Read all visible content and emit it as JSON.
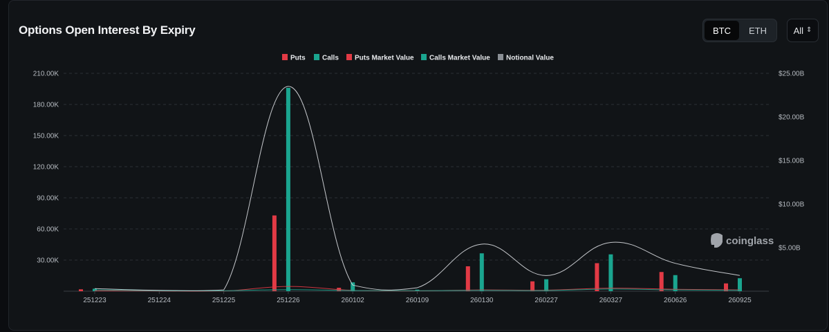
{
  "header": {
    "title": "Options Open Interest By Expiry",
    "coin_options": [
      "BTC",
      "ETH"
    ],
    "selected_coin": "BTC",
    "range_select": "All"
  },
  "watermark": "coinglass",
  "colors": {
    "puts": "#e23a45",
    "calls": "#1aa58f",
    "puts_market_value": "#e23a45",
    "calls_market_value": "#1aa58f",
    "notional_value": "#d9dce0",
    "grid": "#2c3136",
    "background": "#111417"
  },
  "chart_data": {
    "type": "bar",
    "title": "",
    "legend": [
      "Puts",
      "Calls",
      "Puts Market Value",
      "Calls Market Value",
      "Notional Value"
    ],
    "legend_position": "top-center",
    "grid": true,
    "categories": [
      "251223",
      "251224",
      "251225",
      "251226",
      "260102",
      "260109",
      "260130",
      "260227",
      "260327",
      "260626",
      "260925"
    ],
    "y_left": {
      "ticks": [
        "30.00K",
        "60.00K",
        "90.00K",
        "120.00K",
        "150.00K",
        "180.00K",
        "210.00K"
      ],
      "ylim": [
        0,
        210000
      ]
    },
    "y_right": {
      "ticks": [
        "$5.00B",
        "$10.00B",
        "$15.00B",
        "$20.00B",
        "$25.00B"
      ],
      "ylim": [
        0,
        25000000000
      ]
    },
    "series": [
      {
        "name": "Puts",
        "type": "bar",
        "axis": "left",
        "values": [
          1800,
          0,
          0,
          73000,
          3300,
          300,
          24000,
          9500,
          27000,
          18500,
          7500
        ]
      },
      {
        "name": "Calls",
        "type": "bar",
        "axis": "left",
        "values": [
          2400,
          0,
          0,
          196000,
          8500,
          1500,
          36500,
          11500,
          35500,
          15500,
          12500
        ]
      },
      {
        "name": "Puts Market Value",
        "type": "line",
        "axis": "right",
        "values": [
          50000000,
          20000000,
          20000000,
          550000000,
          100000000,
          40000000,
          150000000,
          120000000,
          350000000,
          220000000,
          150000000
        ]
      },
      {
        "name": "Calls Market Value",
        "type": "line",
        "axis": "right",
        "values": [
          150000000,
          50000000,
          50000000,
          180000000,
          80000000,
          60000000,
          100000000,
          80000000,
          250000000,
          150000000,
          100000000
        ]
      },
      {
        "name": "Notional Value",
        "type": "line",
        "axis": "right",
        "values": [
          300000000,
          100000000,
          150000000,
          23500000000,
          700000000,
          400000000,
          5400000000,
          1800000000,
          5600000000,
          3200000000,
          1800000000
        ]
      }
    ]
  }
}
